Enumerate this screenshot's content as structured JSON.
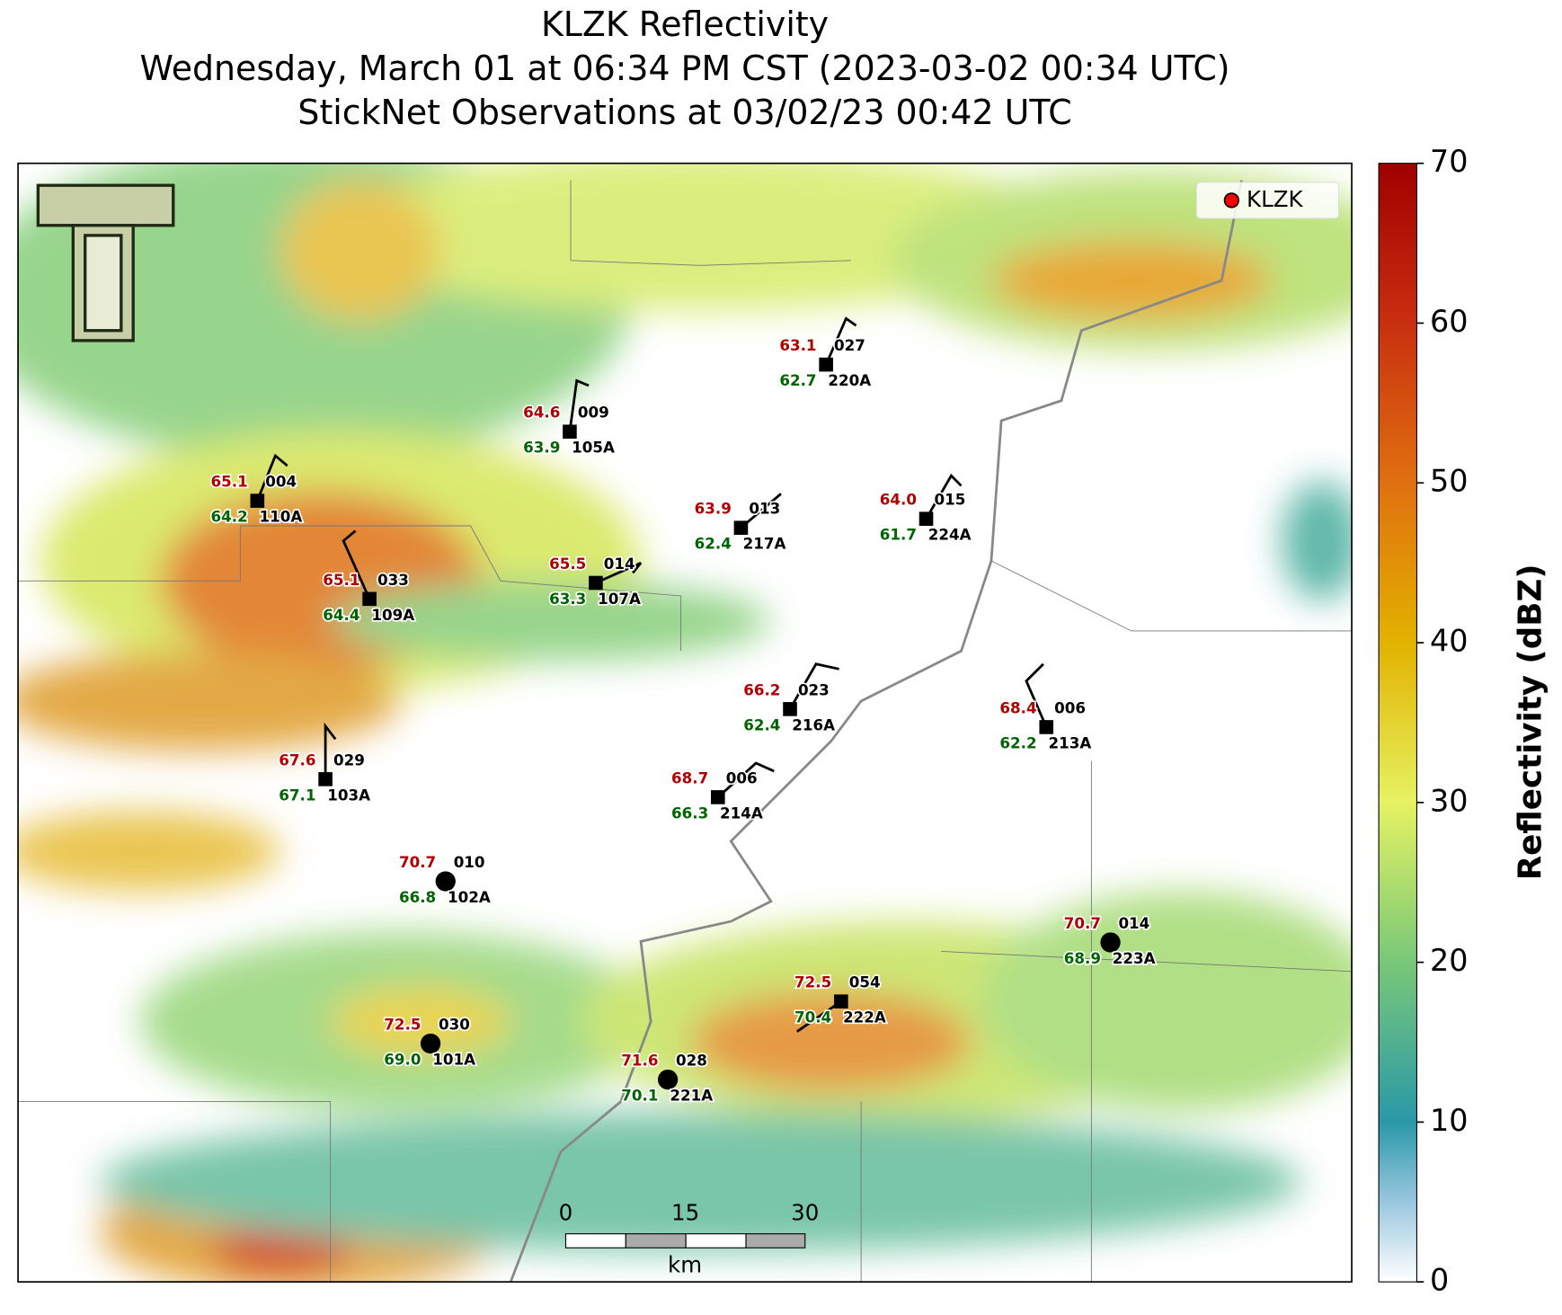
{
  "header": {
    "title": "KLZK Reflectivity",
    "subtitle": "Wednesday, March 01 at 06:34 PM CST (2023-03-02 00:34 UTC)",
    "subtitle2": "StickNet Observations at 03/02/23 00:42 UTC"
  },
  "legend": {
    "label": "KLZK",
    "color": "#ff0000",
    "corner": "upper right"
  },
  "colorbar": {
    "label": "Reflectivity (dBZ)",
    "lim": [
      0,
      70
    ],
    "ticks": [
      0,
      10,
      20,
      30,
      40,
      50,
      60,
      70
    ]
  },
  "scale_bar": {
    "ticks": [
      0,
      15,
      30
    ],
    "unit": "km"
  },
  "stations": [
    {
      "id": "110A",
      "temp": "65.1",
      "dewpoint": "64.2",
      "wind": "004",
      "marker": "square"
    },
    {
      "id": "109A",
      "temp": "65.1",
      "dewpoint": "64.4",
      "wind": "033",
      "marker": "square"
    },
    {
      "id": "105A",
      "temp": "64.6",
      "dewpoint": "63.9",
      "wind": "009",
      "marker": "square"
    },
    {
      "id": "220A",
      "temp": "63.1",
      "dewpoint": "62.7",
      "wind": "027",
      "marker": "square"
    },
    {
      "id": "217A",
      "temp": "63.9",
      "dewpoint": "62.4",
      "wind": "013",
      "marker": "square"
    },
    {
      "id": "224A",
      "temp": "64.0",
      "dewpoint": "61.7",
      "wind": "015",
      "marker": "square"
    },
    {
      "id": "107A",
      "temp": "65.5",
      "dewpoint": "63.3",
      "wind": "014",
      "marker": "square"
    },
    {
      "id": "216A",
      "temp": "66.2",
      "dewpoint": "62.4",
      "wind": "023",
      "marker": "square"
    },
    {
      "id": "213A",
      "temp": "68.4",
      "dewpoint": "62.2",
      "wind": "006",
      "marker": "square"
    },
    {
      "id": "103A",
      "temp": "67.6",
      "dewpoint": "67.1",
      "wind": "029",
      "marker": "square"
    },
    {
      "id": "214A",
      "temp": "68.7",
      "dewpoint": "66.3",
      "wind": "006",
      "marker": "square"
    },
    {
      "id": "102A",
      "temp": "70.7",
      "dewpoint": "66.8",
      "wind": "010",
      "marker": "circle"
    },
    {
      "id": "223A",
      "temp": "70.7",
      "dewpoint": "68.9",
      "wind": "014",
      "marker": "circle"
    },
    {
      "id": "222A",
      "temp": "72.5",
      "dewpoint": "70.4",
      "wind": "054",
      "marker": "square"
    },
    {
      "id": "101A",
      "temp": "72.5",
      "dewpoint": "69.0",
      "wind": "030",
      "marker": "circle"
    },
    {
      "id": "221A",
      "temp": "71.6",
      "dewpoint": "70.1",
      "wind": "028",
      "marker": "circle"
    }
  ]
}
